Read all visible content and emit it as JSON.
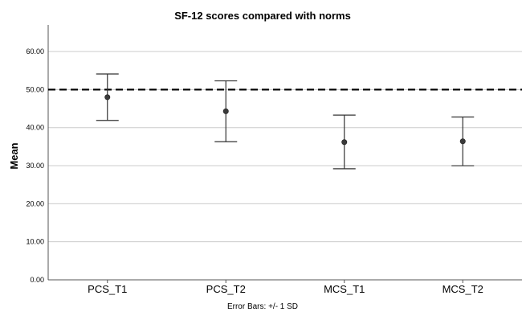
{
  "chart_data": {
    "type": "scatter",
    "title": "SF-12 scores compared with norms",
    "ylabel": "Mean",
    "xlabel": "",
    "footnote": "Error Bars: +/- 1 SD",
    "ylim": [
      0,
      67
    ],
    "y_ticks": [
      "0.00",
      "10.00",
      "20.00",
      "30.00",
      "40.00",
      "50.00",
      "60.00"
    ],
    "y_tick_values": [
      0,
      10,
      20,
      30,
      40,
      50,
      60
    ],
    "grid": "horizontal",
    "reference_line": {
      "value": 50,
      "style": "dashed"
    },
    "categories": [
      "PCS_T1",
      "PCS_T2",
      "MCS_T1",
      "MCS_T2"
    ],
    "series": [
      {
        "values": [
          48.0,
          44.3,
          36.2,
          36.4
        ],
        "error_low": [
          41.9,
          36.3,
          29.2,
          30.0
        ],
        "error_high": [
          54.1,
          52.3,
          43.3,
          42.8
        ]
      }
    ],
    "colors": {
      "point": "#3a3a3a",
      "grid": "#cccccc",
      "axis": "#555555"
    }
  }
}
